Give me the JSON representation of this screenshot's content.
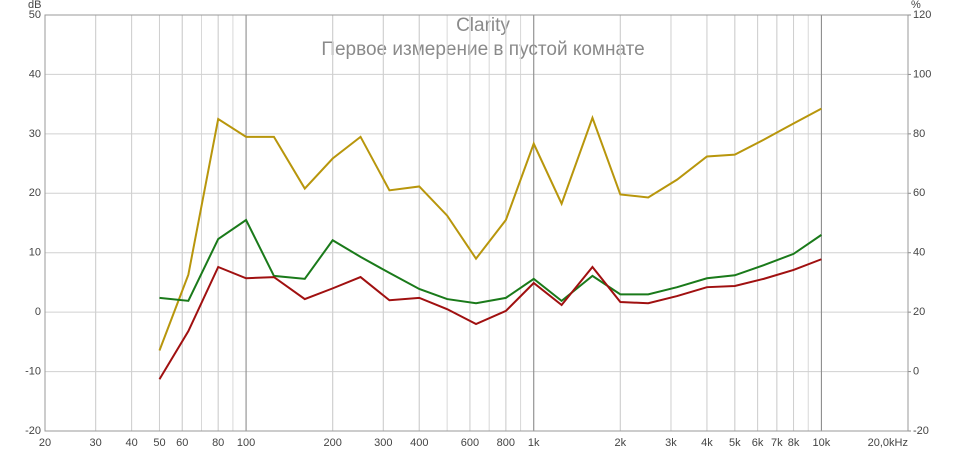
{
  "chart_data": {
    "type": "line",
    "title": "Clarity",
    "subtitle": "Первое измерение в пустой комнате",
    "y_label": "dB",
    "y2_label": "%",
    "x_log": true,
    "grid": true,
    "x": [
      50,
      63,
      80,
      100,
      125,
      160,
      200,
      250,
      315,
      400,
      500,
      630,
      800,
      1000,
      1250,
      1600,
      2000,
      2500,
      3150,
      4000,
      5000,
      6300,
      8000,
      10000
    ],
    "series": [
      {
        "color": "#b8960c",
        "axis": "y2",
        "values": [
          7.1,
          32.6,
          85,
          79,
          79,
          61.6,
          71.7,
          79,
          61,
          62.3,
          52.5,
          38,
          51,
          76.7,
          56.5,
          85.4,
          59.6,
          58.6,
          64.6,
          72.4,
          73,
          78,
          83.5,
          88.5
        ]
      },
      {
        "color": "#1a7a1a",
        "values": [
          2.4,
          1.9,
          12.3,
          15.5,
          6.1,
          5.6,
          12.1,
          9.3,
          6.6,
          3.9,
          2.2,
          1.5,
          2.4,
          5.6,
          1.9,
          6.1,
          3.0,
          3.0,
          4.2,
          5.7,
          6.2,
          7.9,
          9.8,
          13.0
        ]
      },
      {
        "color": "#a01010",
        "values": [
          -11.3,
          -3.2,
          7.6,
          5.7,
          5.9,
          2.2,
          4.0,
          5.9,
          2.0,
          2.4,
          0.5,
          -2.0,
          0.2,
          4.9,
          1.2,
          7.6,
          1.7,
          1.5,
          2.7,
          4.2,
          4.4,
          5.6,
          7.1,
          8.9
        ]
      }
    ],
    "xlim": [
      20,
      20000
    ],
    "xticks": [
      20,
      30,
      40,
      50,
      60,
      80,
      100,
      200,
      300,
      400,
      600,
      800,
      {
        "value": 1000,
        "label": "1k"
      },
      {
        "value": 2000,
        "label": "2k"
      },
      {
        "value": 3000,
        "label": "3k"
      },
      {
        "value": 4000,
        "label": "4k"
      },
      {
        "value": 5000,
        "label": "5k"
      },
      {
        "value": 6000,
        "label": "6k"
      },
      {
        "value": 7000,
        "label": "7k"
      },
      {
        "value": 8000,
        "label": "8k"
      },
      {
        "value": 10000,
        "label": "10k"
      },
      {
        "value": 20000,
        "label": "20,0kHz"
      }
    ],
    "ylim": [
      -20,
      50
    ],
    "yticks": [
      -20,
      -10,
      0,
      10,
      20,
      30,
      40,
      50
    ],
    "y2lim": [
      -20,
      120
    ],
    "y2ticks": [
      -20,
      0,
      20,
      40,
      60,
      80,
      100,
      120
    ]
  }
}
